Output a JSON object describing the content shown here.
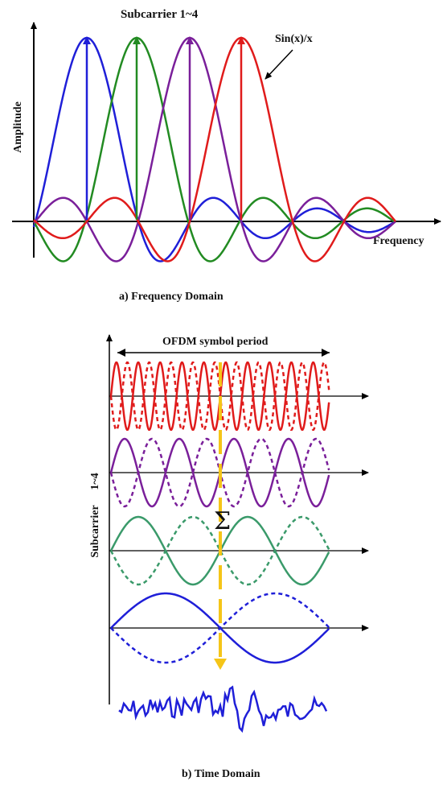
{
  "top_panel": {
    "title": "Subcarrier 1~4",
    "y_axis_label": "Amplitude",
    "x_axis_label": "Frequency",
    "curve_label": "Sin(x)/x",
    "caption": "a) Frequency Domain",
    "colors": {
      "blue": "#1f1fd8",
      "green": "#228b22",
      "purple": "#7a1f9a",
      "red": "#e01b1b"
    }
  },
  "bottom_panel": {
    "period_label": "OFDM symbol period",
    "y_axis_label": "Subcarrier",
    "y_axis_sub": "1~4",
    "sum_symbol": "Σ",
    "caption": "b) Time Domain",
    "colors": {
      "red": "#e01b1b",
      "purple": "#7a1f9a",
      "green": "#3a9a6a",
      "blue": "#1f1fd8",
      "arrow": "#f5c518"
    }
  }
}
